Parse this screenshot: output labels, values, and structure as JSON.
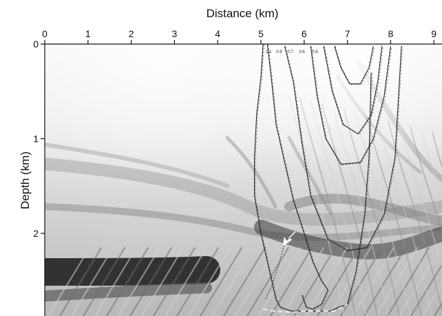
{
  "chart_data": {
    "type": "contour",
    "xlabel": "Distance (km)",
    "ylabel": "Depth (km)",
    "x_axis_position": "top",
    "xlim": [
      0,
      9.3
    ],
    "ylim": [
      2.8,
      0
    ],
    "xticks": [
      0,
      1,
      2,
      3,
      4,
      5,
      6,
      7,
      8,
      9
    ],
    "yticks": [
      0,
      1,
      2
    ],
    "grid": false,
    "background": "grayscale seismic image",
    "contour_levels": [
      "1.1",
      "0.9",
      "0.7",
      "0.6",
      "0.5"
    ],
    "series": [
      {
        "style": "solid dark",
        "x": [
          5.05,
          5.0,
          4.9,
          4.85,
          4.85,
          5.0,
          5.2,
          5.35,
          5.45,
          5.7,
          6.0,
          6.3,
          6.6,
          6.8,
          7.0,
          7.2,
          7.4,
          7.5,
          7.55
        ],
        "y": [
          0.0,
          0.35,
          0.75,
          1.2,
          1.6,
          2.0,
          2.4,
          2.7,
          2.78,
          2.82,
          2.82,
          2.82,
          2.82,
          2.78,
          2.75,
          2.4,
          1.8,
          1.2,
          0.3
        ]
      },
      {
        "style": "dashed white",
        "x": [
          5.05,
          5.3,
          5.55,
          5.8,
          6.0,
          6.1,
          6.2,
          6.4,
          6.7,
          7.0
        ],
        "y": [
          2.8,
          2.82,
          2.83,
          2.83,
          2.82,
          2.82,
          2.82,
          2.82,
          2.82,
          2.75
        ]
      },
      {
        "style": "solid dark",
        "x": [
          5.15,
          5.25,
          5.35,
          5.55,
          5.75,
          6.0,
          6.2,
          6.4,
          6.55,
          6.4,
          6.2,
          6.05,
          5.95
        ],
        "y": [
          0.0,
          0.4,
          0.85,
          1.25,
          1.65,
          2.0,
          2.3,
          2.5,
          2.6,
          2.75,
          2.8,
          2.78,
          2.65
        ]
      },
      {
        "style": "solid dark",
        "x": [
          5.55,
          5.75,
          5.95,
          6.15,
          6.55,
          7.0,
          7.45,
          7.85,
          8.1,
          8.25
        ],
        "y": [
          0.02,
          0.4,
          1.05,
          1.6,
          2.06,
          2.18,
          2.15,
          1.8,
          1.2,
          0.02
        ]
      },
      {
        "style": "solid dark",
        "x": [
          6.15,
          6.3,
          6.5,
          6.85,
          7.3,
          7.6,
          7.85,
          8.0
        ],
        "y": [
          0.02,
          0.55,
          1.0,
          1.27,
          1.25,
          1.0,
          0.55,
          0.02
        ]
      },
      {
        "style": "solid dark",
        "x": [
          6.45,
          6.65,
          6.9,
          7.25,
          7.55,
          7.7,
          7.8
        ],
        "y": [
          0.02,
          0.5,
          0.85,
          0.95,
          0.75,
          0.4,
          0.02
        ]
      },
      {
        "style": "solid dark",
        "x": [
          6.7,
          6.85,
          7.05,
          7.3,
          7.5,
          7.6
        ],
        "y": [
          0.02,
          0.25,
          0.42,
          0.42,
          0.25,
          0.02
        ]
      },
      {
        "style": "dashed dark",
        "x": [
          5.55,
          5.4,
          5.25,
          5.1
        ],
        "y": [
          2.1,
          2.35,
          2.55,
          2.7
        ]
      }
    ],
    "annotations": [
      {
        "type": "arrow",
        "color": "white",
        "x": 5.6,
        "y": 2.05,
        "direction": "down-left"
      }
    ]
  }
}
